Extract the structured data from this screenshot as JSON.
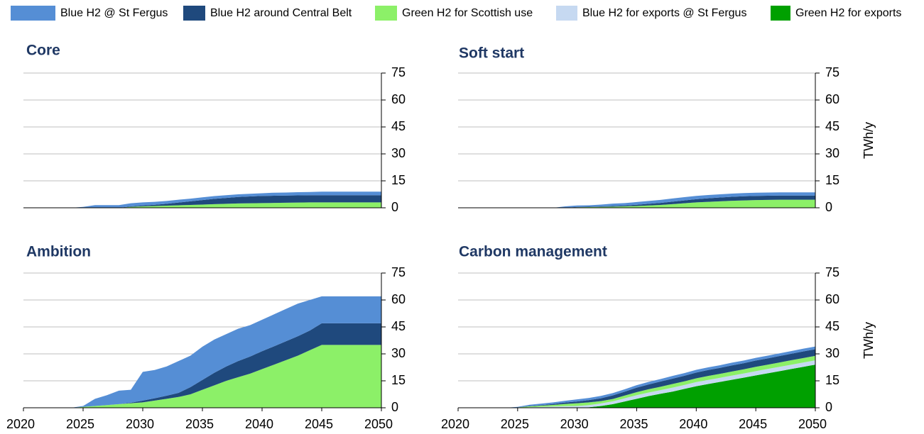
{
  "legend": [
    {
      "name": "Blue H2 @ St Fergus",
      "color": "#558ed5"
    },
    {
      "name": "Blue H2 around Central Belt",
      "color": "#1f497d"
    },
    {
      "name": "Green H2 for Scottish use",
      "color": "#8cf068"
    },
    {
      "name": "Blue H2 for exports @ St Fergus",
      "color": "#c6d9f1"
    },
    {
      "name": "Green H2 for exports",
      "color": "#00a000"
    }
  ],
  "chart_data": [
    {
      "type": "area",
      "title": "Core",
      "x": [
        2020,
        2021,
        2022,
        2023,
        2024,
        2025,
        2026,
        2027,
        2028,
        2029,
        2030,
        2031,
        2032,
        2033,
        2034,
        2035,
        2036,
        2037,
        2038,
        2039,
        2040,
        2041,
        2042,
        2043,
        2044,
        2045,
        2046,
        2047,
        2048,
        2049,
        2050
      ],
      "xlim": [
        2020,
        2050
      ],
      "ylim": [
        0,
        75
      ],
      "yticks": [
        0,
        15,
        30,
        45,
        60,
        75
      ],
      "grid": true,
      "series": [
        {
          "values": [
            0,
            0,
            0,
            0,
            0,
            0.5,
            1.5,
            1.5,
            1.5,
            1.7,
            1.7,
            1.6,
            1.6,
            1.6,
            1.5,
            1.5,
            1.5,
            1.5,
            1.5,
            1.5,
            1.5,
            1.7,
            1.7,
            1.8,
            1.8,
            2,
            2,
            2,
            2,
            2,
            2
          ]
        },
        {
          "values": [
            0,
            0,
            0,
            0,
            0,
            0,
            0,
            0,
            0,
            0.3,
            0.5,
            0.7,
            1,
            1.5,
            2,
            2.5,
            3,
            3.3,
            3.6,
            3.8,
            4,
            4,
            4,
            4,
            4,
            4,
            4,
            4,
            4,
            4,
            4
          ]
        },
        {
          "values": [
            0,
            0,
            0,
            0,
            0,
            0,
            0,
            0,
            0,
            0.5,
            0.8,
            1,
            1.2,
            1.4,
            1.6,
            1.8,
            2,
            2.2,
            2.4,
            2.5,
            2.6,
            2.7,
            2.8,
            2.9,
            3,
            3,
            3,
            3,
            3,
            3,
            3
          ]
        }
      ]
    },
    {
      "type": "area",
      "title": "Soft start",
      "ylabel": "TWh/y",
      "x": [
        2020,
        2021,
        2022,
        2023,
        2024,
        2025,
        2026,
        2027,
        2028,
        2029,
        2030,
        2031,
        2032,
        2033,
        2034,
        2035,
        2036,
        2037,
        2038,
        2039,
        2040,
        2041,
        2042,
        2043,
        2044,
        2045,
        2046,
        2047,
        2048,
        2049,
        2050
      ],
      "xlim": [
        2020,
        2050
      ],
      "ylim": [
        0,
        75
      ],
      "yticks": [
        0,
        15,
        30,
        45,
        60,
        75
      ],
      "grid": true,
      "series": [
        {
          "values": [
            0,
            0,
            0,
            0,
            0,
            0,
            0,
            0,
            0,
            0.8,
            0.8,
            0.8,
            1,
            1.3,
            1.3,
            1.5,
            1.6,
            1.7,
            1.8,
            1.8,
            1.8,
            1.8,
            1.8,
            1.8,
            1.8,
            1.8,
            1.8,
            1.8,
            1.8,
            1.8,
            1.8
          ]
        },
        {
          "values": [
            0,
            0,
            0,
            0,
            0,
            0,
            0,
            0,
            0,
            0,
            0.2,
            0.2,
            0.3,
            0.4,
            0.5,
            0.7,
            0.9,
            1.1,
            1.4,
            1.6,
            1.8,
            2,
            2.1,
            2.2,
            2.3,
            2.3,
            2.3,
            2.3,
            2.3,
            2.3,
            2.3
          ]
        },
        {
          "values": [
            0,
            0,
            0,
            0,
            0,
            0,
            0,
            0,
            0,
            0,
            0.3,
            0.4,
            0.5,
            0.6,
            0.8,
            1,
            1.3,
            1.6,
            2,
            2.5,
            3,
            3.3,
            3.6,
            3.9,
            4.1,
            4.3,
            4.4,
            4.5,
            4.5,
            4.5,
            4.5
          ]
        }
      ]
    },
    {
      "type": "area",
      "title": "Ambition",
      "x": [
        2020,
        2021,
        2022,
        2023,
        2024,
        2025,
        2026,
        2027,
        2028,
        2029,
        2030,
        2031,
        2032,
        2033,
        2034,
        2035,
        2036,
        2037,
        2038,
        2039,
        2040,
        2041,
        2042,
        2043,
        2044,
        2045,
        2046,
        2047,
        2048,
        2049,
        2050
      ],
      "xlim": [
        2020,
        2050
      ],
      "xticks": [
        2020,
        2025,
        2030,
        2035,
        2040,
        2045,
        2050
      ],
      "ylim": [
        0,
        75
      ],
      "yticks": [
        0,
        15,
        30,
        45,
        60,
        75
      ],
      "grid": true,
      "series": [
        {
          "values": [
            0,
            0,
            0,
            0,
            0,
            0.5,
            4,
            5.5,
            7.5,
            7.2,
            16,
            15.7,
            16.3,
            17.7,
            17.5,
            18.5,
            18.5,
            18,
            18,
            17.5,
            17.5,
            17.8,
            18,
            18.2,
            17,
            15,
            15,
            15,
            15,
            15,
            15
          ]
        },
        {
          "values": [
            0,
            0,
            0,
            0,
            0,
            0,
            0,
            0,
            0,
            0.3,
            1,
            1.3,
            1.7,
            2.3,
            4,
            5.5,
            7,
            8,
            9,
            9.5,
            10,
            10.2,
            10.5,
            10.8,
            11,
            12,
            12,
            12,
            12,
            12,
            12
          ]
        },
        {
          "values": [
            0,
            0,
            0,
            0,
            0,
            0.5,
            1,
            1.5,
            2,
            2.5,
            3,
            4,
            5,
            6,
            7.5,
            10,
            12.5,
            15,
            17,
            19,
            21.5,
            24,
            26.5,
            29,
            32,
            35,
            35,
            35,
            35,
            35,
            35
          ]
        }
      ]
    },
    {
      "type": "area",
      "title": "Carbon management",
      "ylabel": "TWh/y",
      "x": [
        2020,
        2021,
        2022,
        2023,
        2024,
        2025,
        2026,
        2027,
        2028,
        2029,
        2030,
        2031,
        2032,
        2033,
        2034,
        2035,
        2036,
        2037,
        2038,
        2039,
        2040,
        2041,
        2042,
        2043,
        2044,
        2045,
        2046,
        2047,
        2048,
        2049,
        2050
      ],
      "xlim": [
        2020,
        2050
      ],
      "xticks": [
        2020,
        2025,
        2030,
        2035,
        2040,
        2045,
        2050
      ],
      "ylim": [
        0,
        75
      ],
      "yticks": [
        0,
        15,
        30,
        45,
        60,
        75
      ],
      "grid": true,
      "series": [
        {
          "values": [
            0,
            0,
            0,
            0,
            0,
            0.3,
            0.7,
            0.8,
            0.9,
            1,
            1.2,
            1.2,
            1.3,
            1.3,
            1.3,
            1.4,
            1.4,
            1.4,
            1.5,
            1.5,
            1.5,
            1.5,
            1.5,
            1.5,
            1.5,
            1.5,
            1.5,
            1.5,
            1.5,
            1.5,
            1.5
          ]
        },
        {
          "values": [
            0,
            0,
            0,
            0,
            0,
            0,
            0.2,
            0.3,
            0.5,
            0.8,
            1,
            1.3,
            1.6,
            2,
            2.2,
            2.5,
            2.7,
            2.9,
            3,
            3.1,
            3.2,
            3.3,
            3.3,
            3.4,
            3.4,
            3.5,
            3.5,
            3.6,
            3.6,
            3.7,
            3.7
          ]
        },
        {
          "values": [
            0,
            0,
            0,
            0,
            0,
            0.2,
            0.5,
            0.7,
            0.9,
            1.2,
            1.5,
            1.5,
            1.3,
            1.3,
            1.5,
            1.7,
            1.8,
            1.9,
            2,
            2,
            2.1,
            2.2,
            2.2,
            2.3,
            2.3,
            2.4,
            2.4,
            2.4,
            2.5,
            2.5,
            2.5
          ]
        },
        {
          "values": [
            0,
            0,
            0,
            0,
            0,
            0,
            0.3,
            0.5,
            0.7,
            0.9,
            1,
            1.2,
            1.4,
            1.6,
            1.8,
            2,
            2,
            2,
            2.2,
            2.2,
            2.3,
            2.3,
            2.3,
            2.3,
            2.3,
            2.4,
            2.4,
            2.4,
            2.4,
            2.4,
            2.4
          ]
        },
        {
          "values": [
            0,
            0,
            0,
            0,
            0,
            0,
            0,
            0,
            0,
            0,
            0,
            0.3,
            1,
            2,
            3.5,
            5,
            6.5,
            7.8,
            9,
            10.5,
            12,
            13.2,
            14.4,
            15.6,
            16.8,
            18,
            19.2,
            20.4,
            21.6,
            22.8,
            24
          ]
        }
      ]
    }
  ]
}
